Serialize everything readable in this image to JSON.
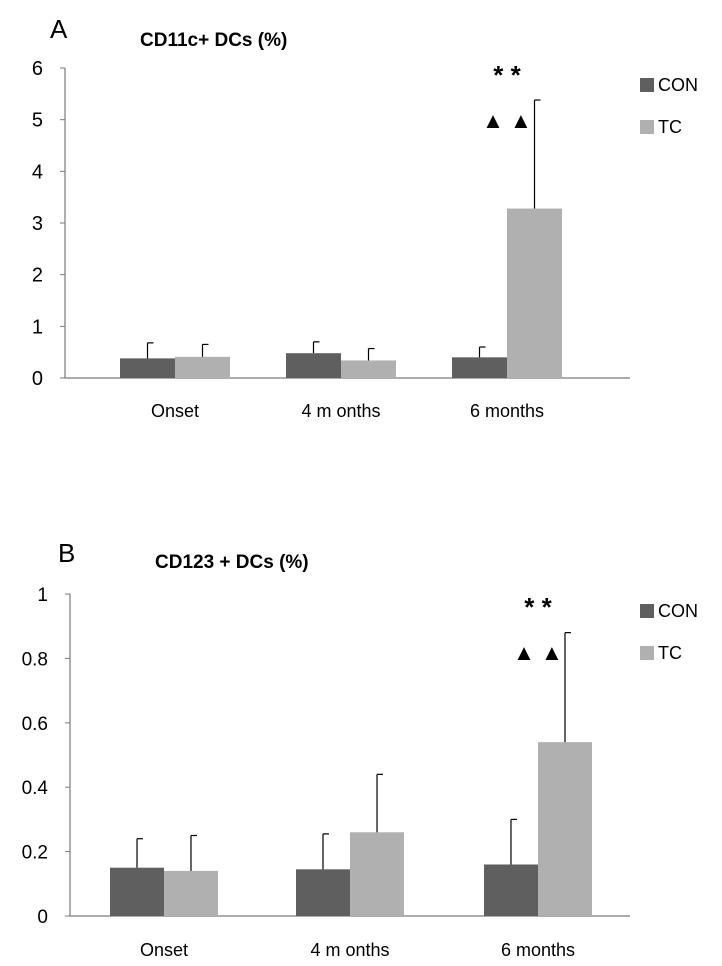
{
  "chart_data": [
    {
      "panel": "A",
      "type": "bar",
      "title": "CD11c+ DCs (%)",
      "categories": [
        "Onset",
        "4 m onths",
        "6 months"
      ],
      "series": [
        {
          "name": "CON",
          "values": [
            0.38,
            0.48,
            0.4
          ],
          "errors": [
            0.3,
            0.22,
            0.2
          ]
        },
        {
          "name": "TC",
          "values": [
            0.41,
            0.34,
            3.28
          ],
          "errors": [
            0.24,
            0.23,
            2.1
          ]
        }
      ],
      "ylim": [
        0,
        6
      ],
      "yticks": [
        "0",
        "1",
        "2",
        "3",
        "4",
        "5",
        "6"
      ],
      "annotations": {
        "stars": "* *",
        "triangles": "▲ ▲",
        "category": "6 months"
      },
      "grid": false,
      "legend": "right"
    },
    {
      "panel": "B",
      "type": "bar",
      "title": "CD123 + DCs (%)",
      "categories": [
        "Onset",
        "4 m onths",
        "6 months"
      ],
      "series": [
        {
          "name": "CON",
          "values": [
            0.15,
            0.145,
            0.16
          ],
          "errors": [
            0.09,
            0.11,
            0.14
          ]
        },
        {
          "name": "TC",
          "values": [
            0.14,
            0.26,
            0.54
          ],
          "errors": [
            0.11,
            0.18,
            0.34
          ]
        }
      ],
      "ylim": [
        0,
        1
      ],
      "yticks": [
        "0",
        "0.2",
        "0.4",
        "0.6",
        "0.8",
        "1"
      ],
      "annotations": {
        "stars": "* *",
        "triangles": "▲ ▲",
        "category": "6 months"
      },
      "grid": false,
      "legend": "right"
    }
  ],
  "colors": {
    "CON": "#5f5f5f",
    "TC": "#b0b0b0",
    "axis": "#7a7a7a"
  }
}
